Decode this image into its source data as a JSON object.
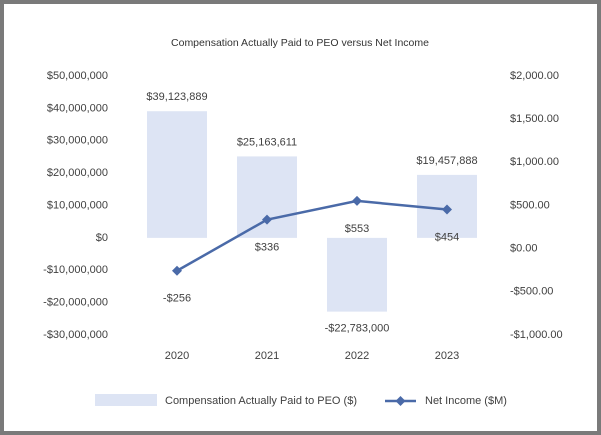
{
  "chart_data": {
    "type": "bar",
    "title": "Compensation Actually Paid to PEO versus Net Income",
    "categories": [
      "2020",
      "2021",
      "2022",
      "2023"
    ],
    "series": [
      {
        "name": "Compensation Actually Paid to PEO ($)",
        "type": "bar",
        "color": "#dde4f4",
        "values": [
          39123889,
          25163611,
          -22783000,
          19457888
        ],
        "value_labels": [
          "$39,123,889",
          "$25,163,611",
          "-$22,783,000",
          "$19,457,888"
        ]
      },
      {
        "name": "Net Income ($M)",
        "type": "line",
        "axis": "y2",
        "color": "#4a6aa8",
        "values": [
          -256,
          336,
          553,
          454
        ],
        "value_labels": [
          "-$256",
          "$336",
          "$553",
          "$454"
        ]
      }
    ],
    "ylim": [
      -30000000,
      50000000
    ],
    "yticks": [
      {
        "value": -30000000,
        "label": "-$30,000,000"
      },
      {
        "value": -20000000,
        "label": "-$20,000,000"
      },
      {
        "value": -10000000,
        "label": "-$10,000,000"
      },
      {
        "value": 0,
        "label": "$0"
      },
      {
        "value": 10000000,
        "label": "$10,000,000"
      },
      {
        "value": 20000000,
        "label": "$20,000,000"
      },
      {
        "value": 30000000,
        "label": "$30,000,000"
      },
      {
        "value": 40000000,
        "label": "$40,000,000"
      },
      {
        "value": 50000000,
        "label": "$50,000,000"
      }
    ],
    "y2lim": [
      -1000,
      2000
    ],
    "y2ticks": [
      {
        "value": -1000,
        "label": "-$1,000.00"
      },
      {
        "value": -500,
        "label": "-$500.00"
      },
      {
        "value": 0,
        "label": "$0.00"
      },
      {
        "value": 500,
        "label": "$500.00"
      },
      {
        "value": 1000,
        "label": "$1,000.00"
      },
      {
        "value": 1500,
        "label": "$1,500.00"
      },
      {
        "value": 2000,
        "label": "$2,000.00"
      }
    ],
    "grid": false,
    "legend": "bottom"
  }
}
